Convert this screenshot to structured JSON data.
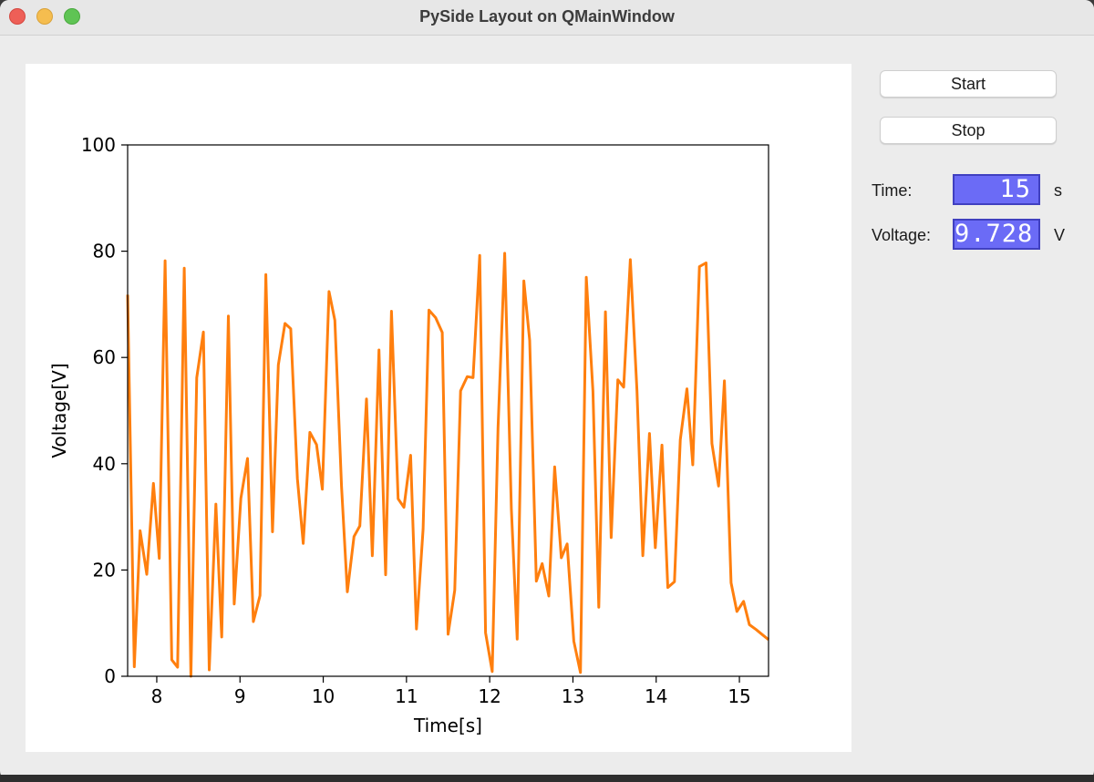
{
  "window": {
    "title": "PySide Layout on QMainWindow"
  },
  "controls": {
    "start_label": "Start",
    "stop_label": "Stop",
    "time_label": "Time:",
    "time_value": "15",
    "time_unit": "s",
    "voltage_label": "Voltage:",
    "voltage_value": "9.728",
    "voltage_unit": "V"
  },
  "colors": {
    "line": "#ff7f0e",
    "lcd_bg": "#6b6bf6",
    "lcd_border": "#4040c0"
  },
  "chart_data": {
    "type": "line",
    "title": "",
    "xlabel": "Time[s]",
    "ylabel": "Voltage[V]",
    "xlim": [
      7.65,
      15.35
    ],
    "ylim": [
      0,
      100
    ],
    "xticks": [
      8,
      9,
      10,
      11,
      12,
      13,
      14,
      15
    ],
    "yticks": [
      0,
      20,
      40,
      60,
      80,
      100
    ],
    "grid": false,
    "series": [
      {
        "name": "Voltage",
        "x": [
          7.65,
          7.73,
          7.8,
          7.88,
          7.96,
          8.03,
          8.1,
          8.18,
          8.25,
          8.33,
          8.41,
          8.48,
          8.56,
          8.63,
          8.71,
          8.78,
          8.86,
          8.93,
          9.01,
          9.09,
          9.16,
          9.24,
          9.31,
          9.39,
          9.46,
          9.54,
          9.61,
          9.69,
          9.76,
          9.84,
          9.92,
          9.99,
          10.07,
          10.14,
          10.22,
          10.29,
          10.37,
          10.44,
          10.52,
          10.59,
          10.67,
          10.75,
          10.82,
          10.9,
          10.97,
          11.05,
          11.12,
          11.2,
          11.27,
          11.35,
          11.43,
          11.5,
          11.58,
          11.65,
          11.73,
          11.8,
          11.88,
          11.95,
          12.03,
          12.1,
          12.18,
          12.26,
          12.33,
          12.41,
          12.48,
          12.56,
          12.63,
          12.71,
          12.78,
          12.86,
          12.93,
          13.01,
          13.09,
          13.16,
          13.24,
          13.31,
          13.39,
          13.46,
          13.54,
          13.61,
          13.69,
          13.77,
          13.84,
          13.92,
          13.99,
          14.07,
          14.14,
          14.22,
          14.29,
          14.37,
          14.44,
          14.52,
          14.6,
          14.67,
          14.75,
          14.82,
          14.9,
          14.97,
          15.05,
          15.12,
          15.2,
          15.27,
          15.35
        ],
        "values": [
          71.8,
          1.8,
          27.4,
          19.2,
          36.3,
          22.2,
          78.2,
          3.1,
          1.7,
          76.8,
          0.0,
          56.2,
          64.8,
          1.2,
          32.4,
          7.4,
          67.8,
          13.6,
          33.5,
          41.0,
          10.3,
          15.2,
          75.6,
          27.2,
          58.6,
          66.4,
          65.4,
          37.2,
          25.0,
          45.9,
          43.6,
          35.2,
          72.4,
          67.0,
          35.8,
          15.9,
          26.3,
          28.3,
          52.2,
          22.7,
          61.4,
          19.1,
          68.7,
          33.4,
          31.8,
          41.6,
          8.9,
          27.7,
          68.9,
          67.5,
          64.7,
          7.9,
          16.2,
          53.7,
          56.4,
          56.2,
          79.2,
          8.2,
          0.9,
          46.8,
          79.6,
          31.5,
          7.0,
          74.4,
          63.2,
          17.9,
          21.2,
          15.1,
          39.4,
          22.3,
          24.9,
          6.6,
          0.7,
          75.1,
          53.6,
          13.0,
          68.6,
          26.1,
          55.8,
          54.4,
          78.4,
          53.7,
          22.7,
          45.7,
          24.2,
          43.5,
          16.7,
          17.8,
          44.5,
          54.1,
          39.8,
          77.1,
          77.8,
          43.8,
          35.8,
          55.6,
          17.6,
          12.2,
          14.1,
          9.7,
          8.8,
          7.9,
          6.9
        ]
      }
    ]
  }
}
